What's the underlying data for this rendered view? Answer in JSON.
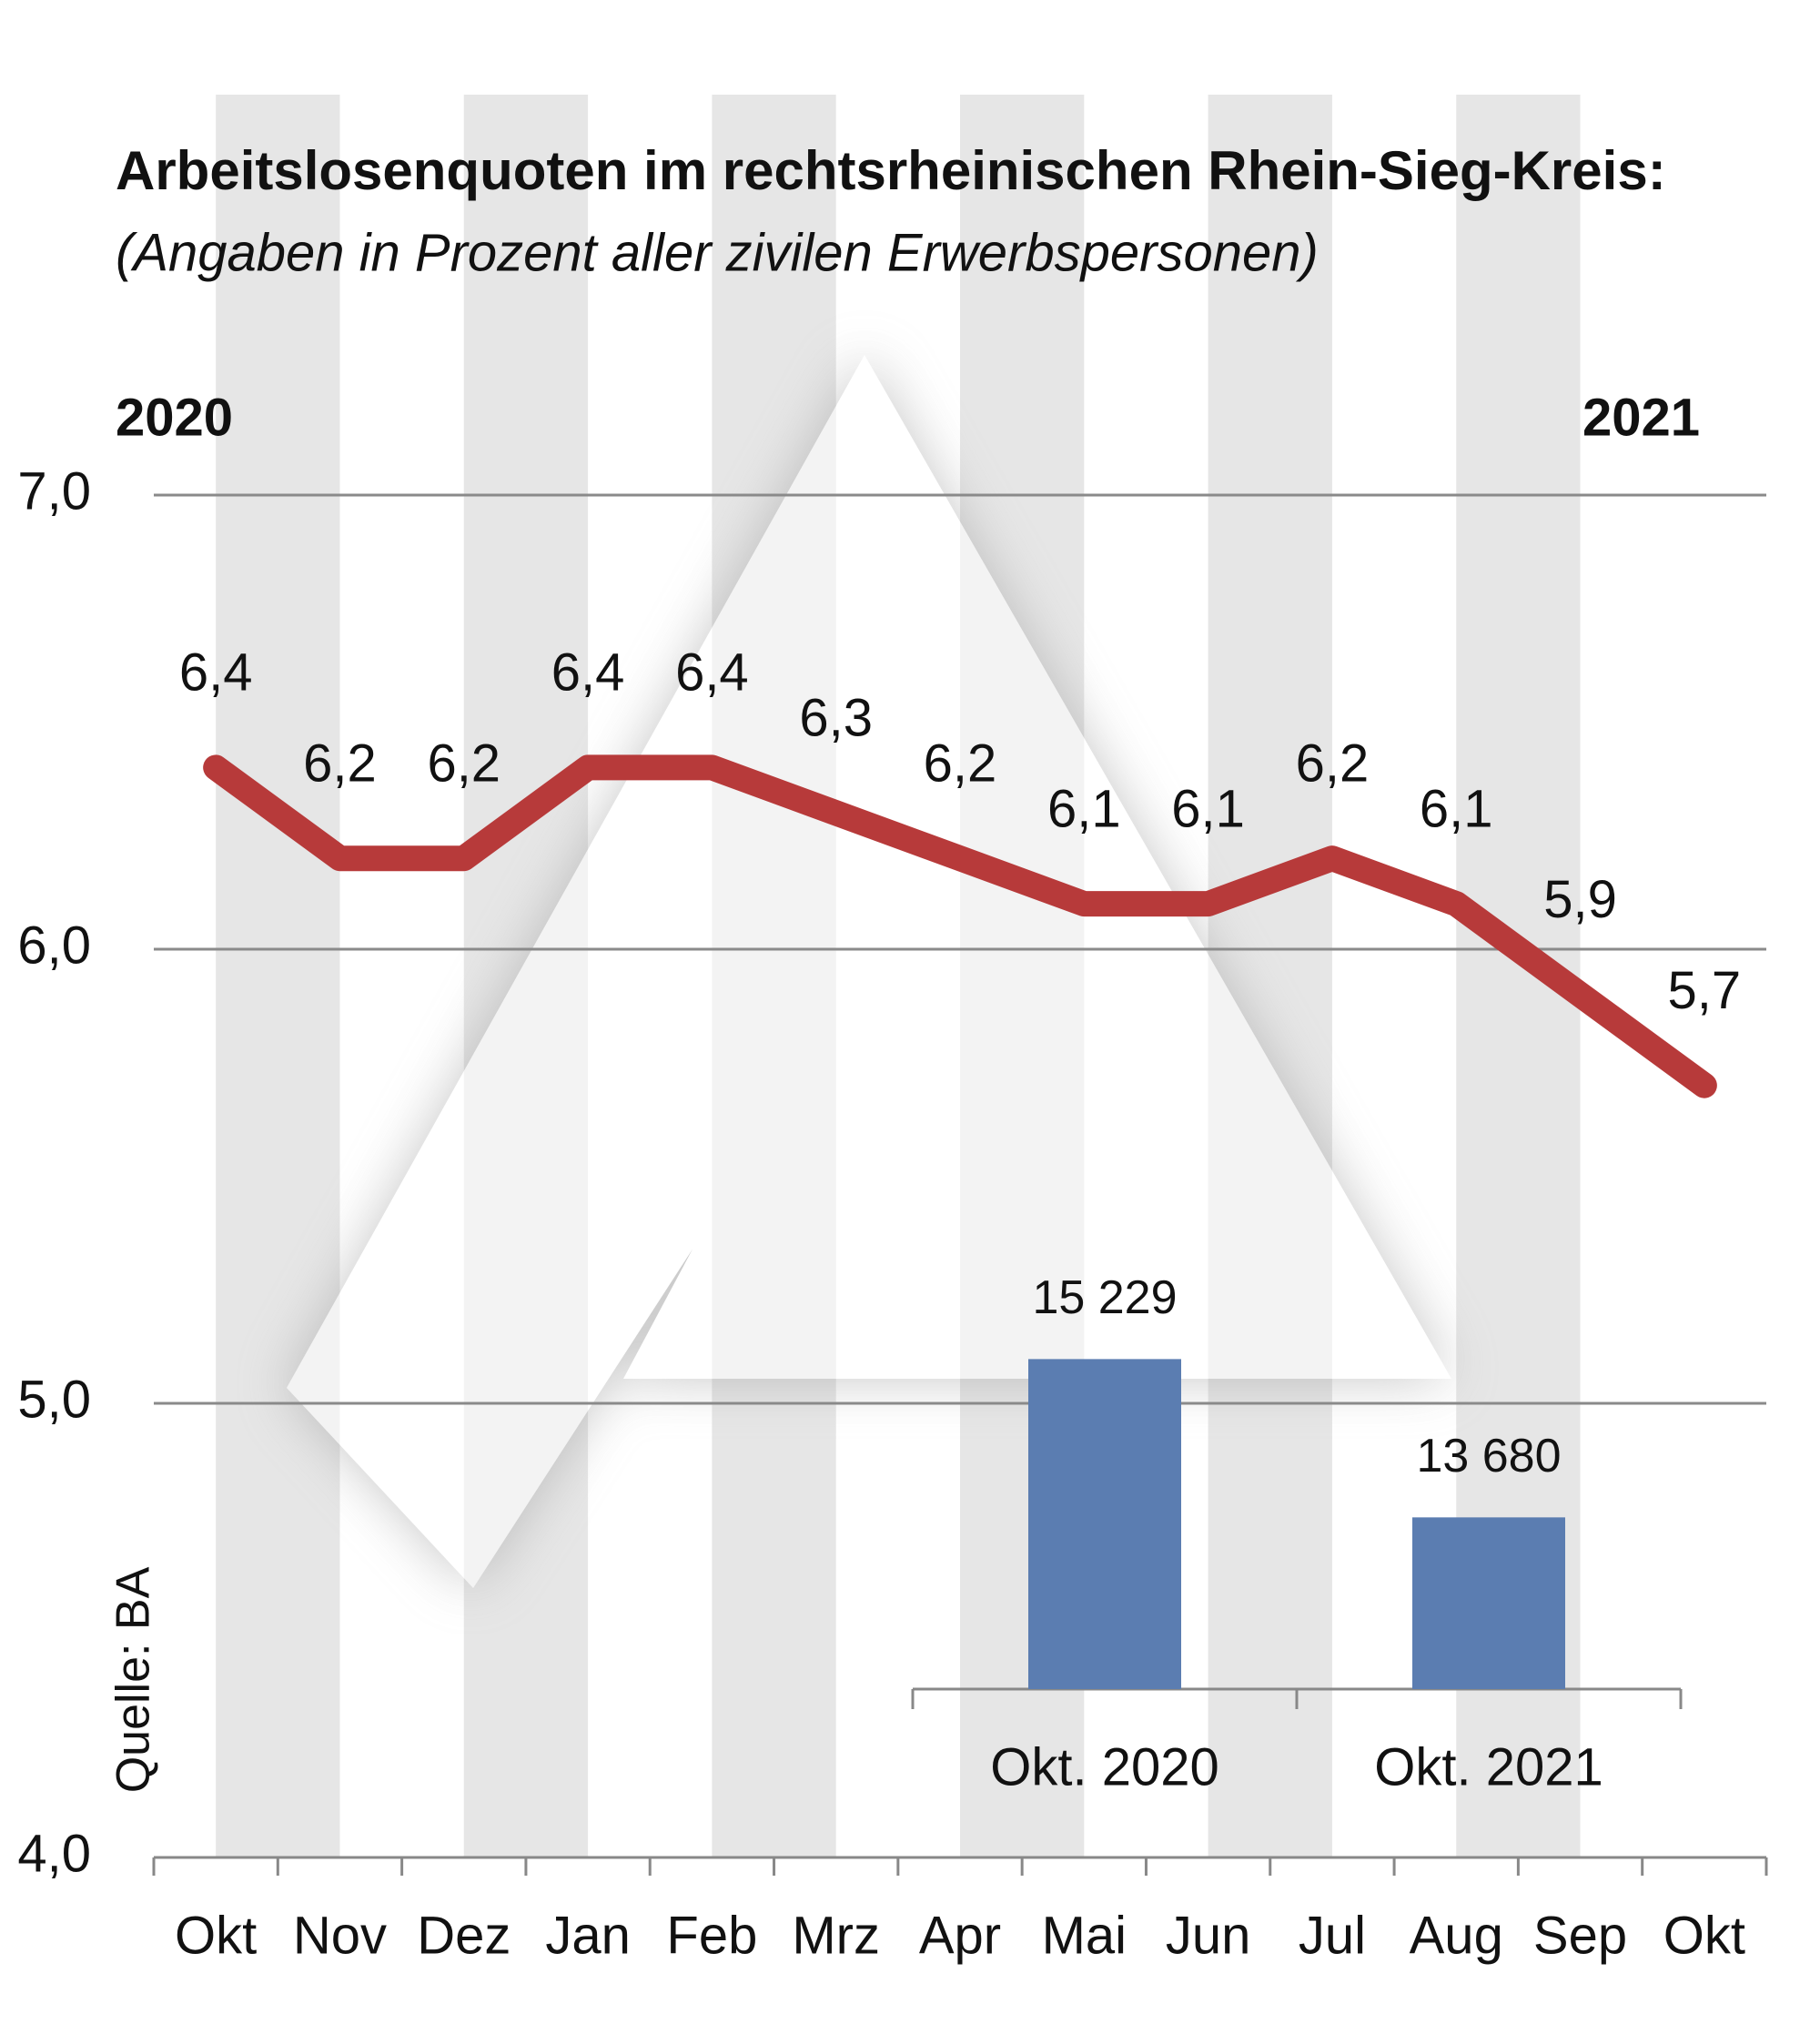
{
  "chart_data": [
    {
      "type": "line",
      "title": "Arbeitslosenquoten im rechtsrheinischen Rhein-Sieg-Kreis:",
      "subtitle": "(Angaben in Prozent aller zivilen Erwerbspersonen)",
      "period_labels": [
        "2020",
        "2021"
      ],
      "source": "Quelle: BA",
      "categories": [
        "Okt",
        "Nov",
        "Dez",
        "Jan",
        "Feb",
        "Mrz",
        "Apr",
        "Mai",
        "Jun",
        "Jul",
        "Aug",
        "Sep",
        "Okt"
      ],
      "values": [
        6.4,
        6.2,
        6.2,
        6.4,
        6.4,
        6.3,
        6.2,
        6.1,
        6.1,
        6.2,
        6.1,
        5.9,
        5.7
      ],
      "value_labels": [
        "6,4",
        "6,2",
        "6,2",
        "6,4",
        "6,4",
        "6,3",
        "6,2",
        "6,1",
        "6,1",
        "6,2",
        "6,1",
        "5,9",
        "5,7"
      ],
      "color": "#b73a3a",
      "ylim": [
        4.0,
        7.0
      ],
      "yticks": [
        {
          "value": 4.0,
          "label": "4,0"
        },
        {
          "value": 5.0,
          "label": "5,0"
        },
        {
          "value": 6.0,
          "label": "6,0"
        },
        {
          "value": 7.0,
          "label": "7,0"
        }
      ],
      "grid": true
    },
    {
      "type": "bar",
      "categories": [
        "Okt. 2020",
        "Okt. 2021"
      ],
      "values": [
        15229,
        13680
      ],
      "value_labels": [
        "15 229",
        "13 680"
      ],
      "color": "#5b7db1",
      "ylim": [
        12000,
        16000
      ]
    }
  ]
}
